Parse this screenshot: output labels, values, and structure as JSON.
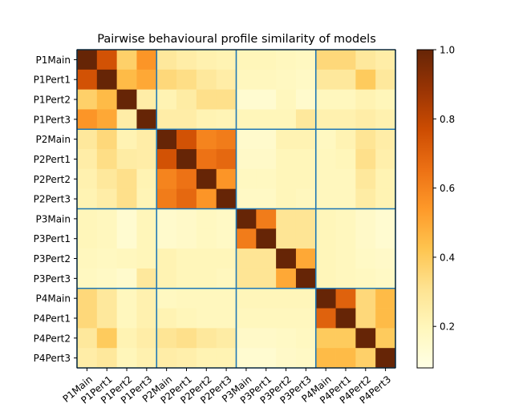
{
  "chart_data": {
    "type": "heatmap",
    "title": "Pairwise behavioural profile similarity of models",
    "xlabel": "",
    "ylabel": "",
    "labels": [
      "P1Main",
      "P1Pert1",
      "P1Pert2",
      "P1Pert3",
      "P2Main",
      "P2Pert1",
      "P2Pert2",
      "P2Pert3",
      "P3Main",
      "P3Pert1",
      "P3Pert2",
      "P3Pert3",
      "P4Main",
      "P4Pert1",
      "P4Pert2",
      "P4Pert3"
    ],
    "values": [
      [
        1.0,
        0.75,
        0.38,
        0.55,
        0.28,
        0.25,
        0.23,
        0.22,
        0.2,
        0.2,
        0.19,
        0.18,
        0.35,
        0.35,
        0.28,
        0.25
      ],
      [
        0.75,
        1.0,
        0.45,
        0.5,
        0.35,
        0.33,
        0.28,
        0.25,
        0.19,
        0.19,
        0.18,
        0.17,
        0.28,
        0.28,
        0.4,
        0.28
      ],
      [
        0.38,
        0.45,
        1.0,
        0.25,
        0.22,
        0.26,
        0.32,
        0.32,
        0.14,
        0.14,
        0.19,
        0.15,
        0.19,
        0.19,
        0.22,
        0.2
      ],
      [
        0.55,
        0.5,
        0.25,
        1.0,
        0.25,
        0.25,
        0.22,
        0.21,
        0.2,
        0.2,
        0.2,
        0.28,
        0.23,
        0.23,
        0.25,
        0.23
      ],
      [
        0.28,
        0.35,
        0.22,
        0.25,
        1.0,
        0.75,
        0.6,
        0.62,
        0.15,
        0.15,
        0.22,
        0.22,
        0.18,
        0.22,
        0.3,
        0.25
      ],
      [
        0.25,
        0.33,
        0.26,
        0.25,
        0.75,
        1.0,
        0.65,
        0.68,
        0.16,
        0.16,
        0.2,
        0.2,
        0.19,
        0.2,
        0.32,
        0.24
      ],
      [
        0.23,
        0.28,
        0.32,
        0.22,
        0.6,
        0.65,
        1.0,
        0.55,
        0.18,
        0.18,
        0.2,
        0.2,
        0.19,
        0.19,
        0.28,
        0.22
      ],
      [
        0.22,
        0.25,
        0.32,
        0.21,
        0.62,
        0.68,
        0.55,
        1.0,
        0.17,
        0.17,
        0.2,
        0.19,
        0.19,
        0.19,
        0.26,
        0.22
      ],
      [
        0.2,
        0.19,
        0.14,
        0.2,
        0.15,
        0.16,
        0.18,
        0.17,
        1.0,
        0.62,
        0.3,
        0.3,
        0.2,
        0.19,
        0.16,
        0.14
      ],
      [
        0.2,
        0.19,
        0.14,
        0.2,
        0.15,
        0.16,
        0.18,
        0.17,
        0.62,
        1.0,
        0.3,
        0.3,
        0.2,
        0.19,
        0.16,
        0.14
      ],
      [
        0.19,
        0.18,
        0.19,
        0.2,
        0.22,
        0.2,
        0.2,
        0.2,
        0.3,
        0.3,
        1.0,
        0.5,
        0.2,
        0.19,
        0.17,
        0.16
      ],
      [
        0.18,
        0.17,
        0.15,
        0.28,
        0.22,
        0.2,
        0.2,
        0.19,
        0.3,
        0.3,
        0.5,
        1.0,
        0.2,
        0.19,
        0.18,
        0.17
      ],
      [
        0.35,
        0.28,
        0.19,
        0.23,
        0.18,
        0.19,
        0.19,
        0.19,
        0.2,
        0.2,
        0.2,
        0.2,
        1.0,
        0.7,
        0.35,
        0.45
      ],
      [
        0.35,
        0.28,
        0.19,
        0.23,
        0.22,
        0.2,
        0.19,
        0.19,
        0.19,
        0.19,
        0.19,
        0.19,
        0.7,
        1.0,
        0.35,
        0.45
      ],
      [
        0.28,
        0.4,
        0.22,
        0.25,
        0.3,
        0.32,
        0.28,
        0.26,
        0.16,
        0.16,
        0.17,
        0.18,
        0.4,
        0.4,
        1.0,
        0.4
      ],
      [
        0.25,
        0.28,
        0.2,
        0.23,
        0.25,
        0.24,
        0.22,
        0.22,
        0.14,
        0.14,
        0.16,
        0.17,
        0.45,
        0.45,
        0.38,
        1.0
      ]
    ],
    "colorbar": {
      "min": 0.08,
      "max": 1.0,
      "ticks": [
        "0.2",
        "0.4",
        "0.6",
        "0.8",
        "1.0"
      ],
      "colormap": [
        "#ffffe5",
        "#fff7bc",
        "#fee391",
        "#fec44f",
        "#fe9929",
        "#ec7014",
        "#cc4c02",
        "#993404",
        "#662506"
      ]
    },
    "group_size": 4,
    "group_line_color": "#1f77b4",
    "grid": false
  }
}
